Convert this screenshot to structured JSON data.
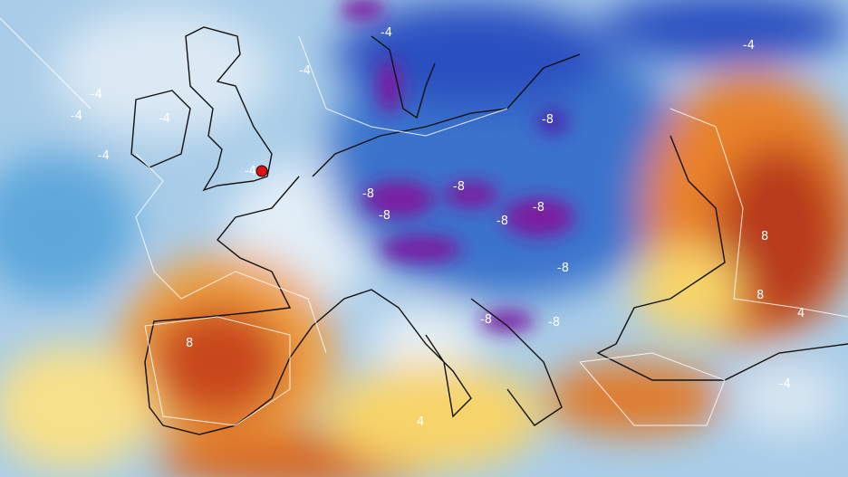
{
  "map": {
    "type": "temperature anomaly map",
    "colors": {
      "cold_light": "#cfe3f2",
      "cold": "#3d8fd1",
      "cold_deep": "#1f3fae",
      "cold_extreme": "#7a1fa0",
      "warm_light": "#f7e08a",
      "warm": "#f0a040",
      "warm_deep": "#c8461c",
      "warm_extreme": "#a52a1a",
      "marker": "#e01010"
    },
    "contour_labels": [
      "-4",
      "-4",
      "-4",
      "-4",
      "-4",
      "-4",
      "-4",
      "-4",
      "-8",
      "-8",
      "-8",
      "-8",
      "-8",
      "-8",
      "-8",
      "-8",
      "-8",
      "8",
      "8",
      "8",
      "4",
      "4",
      "-4"
    ],
    "marker": "location-marker"
  }
}
